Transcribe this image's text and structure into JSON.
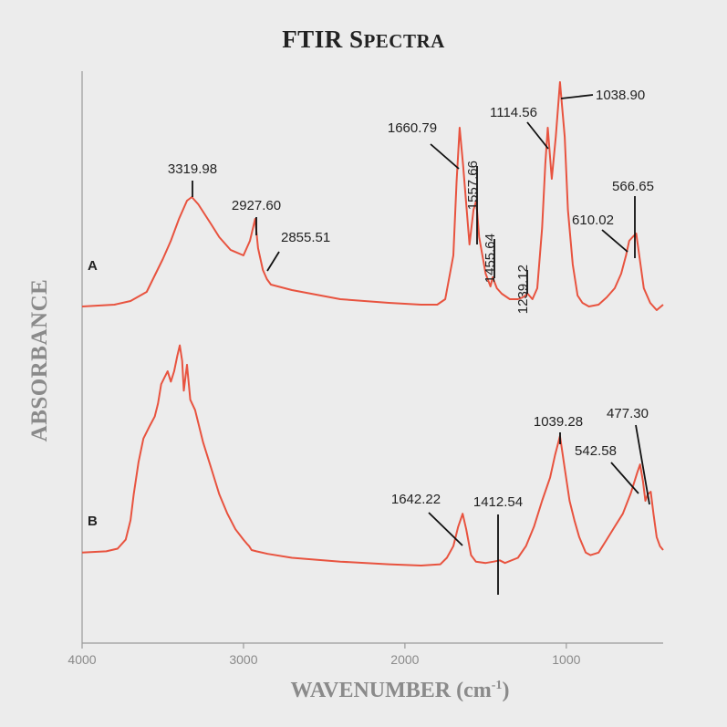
{
  "chart_data": {
    "type": "line",
    "title_main": "FTIR S",
    "title_small": "PECTRA",
    "xlabel_main": "WAVENUMBER (cm",
    "xlabel_sup": "-1",
    "xlabel_end": ")",
    "ylabel": "ABSORBANCE",
    "xlim": [
      4000,
      400
    ],
    "x_ticks": [
      4000,
      3000,
      2000,
      1000
    ],
    "x_tick_labels": [
      "4000",
      "3000",
      "2000",
      "1000"
    ],
    "reversed_x": true,
    "grid": false,
    "series_color": "#e8533f",
    "series": [
      {
        "name": "A",
        "points": [
          [
            4000,
            0.02
          ],
          [
            3800,
            0.03
          ],
          [
            3700,
            0.05
          ],
          [
            3600,
            0.1
          ],
          [
            3500,
            0.28
          ],
          [
            3450,
            0.38
          ],
          [
            3400,
            0.5
          ],
          [
            3350,
            0.6
          ],
          [
            3320,
            0.62
          ],
          [
            3280,
            0.58
          ],
          [
            3200,
            0.47
          ],
          [
            3150,
            0.4
          ],
          [
            3080,
            0.33
          ],
          [
            3000,
            0.3
          ],
          [
            2960,
            0.38
          ],
          [
            2928,
            0.5
          ],
          [
            2910,
            0.34
          ],
          [
            2880,
            0.22
          ],
          [
            2855,
            0.17
          ],
          [
            2830,
            0.14
          ],
          [
            2700,
            0.11
          ],
          [
            2400,
            0.06
          ],
          [
            2100,
            0.04
          ],
          [
            1900,
            0.03
          ],
          [
            1800,
            0.03
          ],
          [
            1750,
            0.06
          ],
          [
            1700,
            0.3
          ],
          [
            1680,
            0.7
          ],
          [
            1661,
            1.0
          ],
          [
            1640,
            0.8
          ],
          [
            1600,
            0.36
          ],
          [
            1575,
            0.55
          ],
          [
            1558,
            0.6
          ],
          [
            1540,
            0.4
          ],
          [
            1500,
            0.2
          ],
          [
            1470,
            0.13
          ],
          [
            1456,
            0.18
          ],
          [
            1430,
            0.12
          ],
          [
            1400,
            0.09
          ],
          [
            1350,
            0.06
          ],
          [
            1300,
            0.06
          ],
          [
            1270,
            0.07
          ],
          [
            1239,
            0.09
          ],
          [
            1210,
            0.06
          ],
          [
            1180,
            0.12
          ],
          [
            1150,
            0.45
          ],
          [
            1130,
            0.8
          ],
          [
            1115,
            1.0
          ],
          [
            1090,
            0.72
          ],
          [
            1065,
            0.95
          ],
          [
            1039,
            1.25
          ],
          [
            1010,
            0.95
          ],
          [
            990,
            0.55
          ],
          [
            960,
            0.25
          ],
          [
            930,
            0.08
          ],
          [
            900,
            0.04
          ],
          [
            860,
            0.02
          ],
          [
            800,
            0.03
          ],
          [
            750,
            0.07
          ],
          [
            700,
            0.12
          ],
          [
            660,
            0.2
          ],
          [
            630,
            0.3
          ],
          [
            610,
            0.38
          ],
          [
            590,
            0.4
          ],
          [
            567,
            0.42
          ],
          [
            540,
            0.25
          ],
          [
            520,
            0.12
          ],
          [
            480,
            0.04
          ],
          [
            440,
            0.0
          ],
          [
            400,
            0.03
          ]
        ],
        "labels": [
          {
            "text": "3319.98",
            "x": 3319.98,
            "rot": false
          },
          {
            "text": "2927.60",
            "x": 2927.6,
            "rot": false
          },
          {
            "text": "2855.51",
            "x": 2855.51,
            "rot": false
          },
          {
            "text": "1660.79",
            "x": 1660.79,
            "rot": false
          },
          {
            "text": "1557.66",
            "x": 1557.66,
            "rot": true
          },
          {
            "text": "1455.64",
            "x": 1455.64,
            "rot": true
          },
          {
            "text": "1239.12",
            "x": 1239.12,
            "rot": true
          },
          {
            "text": "1114.56",
            "x": 1114.56,
            "rot": false
          },
          {
            "text": "1038.90",
            "x": 1038.9,
            "rot": false
          },
          {
            "text": "610.02",
            "x": 610.02,
            "rot": false
          },
          {
            "text": "566.65",
            "x": 566.65,
            "rot": false
          }
        ]
      },
      {
        "name": "B",
        "points": [
          [
            4000,
            0.1
          ],
          [
            3850,
            0.11
          ],
          [
            3780,
            0.13
          ],
          [
            3730,
            0.2
          ],
          [
            3700,
            0.35
          ],
          [
            3680,
            0.55
          ],
          [
            3650,
            0.8
          ],
          [
            3620,
            0.98
          ],
          [
            3580,
            1.08
          ],
          [
            3550,
            1.15
          ],
          [
            3530,
            1.25
          ],
          [
            3510,
            1.4
          ],
          [
            3490,
            1.45
          ],
          [
            3470,
            1.5
          ],
          [
            3450,
            1.42
          ],
          [
            3430,
            1.5
          ],
          [
            3410,
            1.62
          ],
          [
            3395,
            1.7
          ],
          [
            3380,
            1.58
          ],
          [
            3370,
            1.35
          ],
          [
            3350,
            1.55
          ],
          [
            3330,
            1.28
          ],
          [
            3300,
            1.2
          ],
          [
            3250,
            0.95
          ],
          [
            3200,
            0.75
          ],
          [
            3150,
            0.55
          ],
          [
            3100,
            0.4
          ],
          [
            3050,
            0.28
          ],
          [
            3000,
            0.2
          ],
          [
            2980,
            0.17
          ],
          [
            2965,
            0.15
          ],
          [
            2950,
            0.12
          ],
          [
            2920,
            0.11
          ],
          [
            2850,
            0.09
          ],
          [
            2700,
            0.06
          ],
          [
            2400,
            0.03
          ],
          [
            2100,
            0.01
          ],
          [
            1900,
            0.0
          ],
          [
            1780,
            0.01
          ],
          [
            1740,
            0.06
          ],
          [
            1700,
            0.15
          ],
          [
            1670,
            0.3
          ],
          [
            1642,
            0.4
          ],
          [
            1620,
            0.28
          ],
          [
            1590,
            0.08
          ],
          [
            1560,
            0.03
          ],
          [
            1500,
            0.02
          ],
          [
            1450,
            0.03
          ],
          [
            1412,
            0.04
          ],
          [
            1380,
            0.02
          ],
          [
            1300,
            0.06
          ],
          [
            1250,
            0.15
          ],
          [
            1200,
            0.3
          ],
          [
            1150,
            0.5
          ],
          [
            1100,
            0.68
          ],
          [
            1070,
            0.85
          ],
          [
            1039,
            1.0
          ],
          [
            1010,
            0.75
          ],
          [
            980,
            0.5
          ],
          [
            950,
            0.35
          ],
          [
            920,
            0.22
          ],
          [
            880,
            0.1
          ],
          [
            850,
            0.08
          ],
          [
            800,
            0.1
          ],
          [
            750,
            0.2
          ],
          [
            700,
            0.3
          ],
          [
            650,
            0.4
          ],
          [
            600,
            0.56
          ],
          [
            560,
            0.72
          ],
          [
            543,
            0.78
          ],
          [
            525,
            0.65
          ],
          [
            510,
            0.5
          ],
          [
            495,
            0.55
          ],
          [
            477,
            0.57
          ],
          [
            460,
            0.4
          ],
          [
            440,
            0.22
          ],
          [
            420,
            0.15
          ],
          [
            400,
            0.12
          ]
        ],
        "labels": [
          {
            "text": "1642.22",
            "x": 1642.22,
            "rot": false
          },
          {
            "text": "1412.54",
            "x": 1412.54,
            "rot": false
          },
          {
            "text": "1039.28",
            "x": 1039.28,
            "rot": false
          },
          {
            "text": "542.58",
            "x": 542.58,
            "rot": false
          },
          {
            "text": "477.30",
            "x": 477.3,
            "rot": false
          }
        ]
      }
    ]
  }
}
